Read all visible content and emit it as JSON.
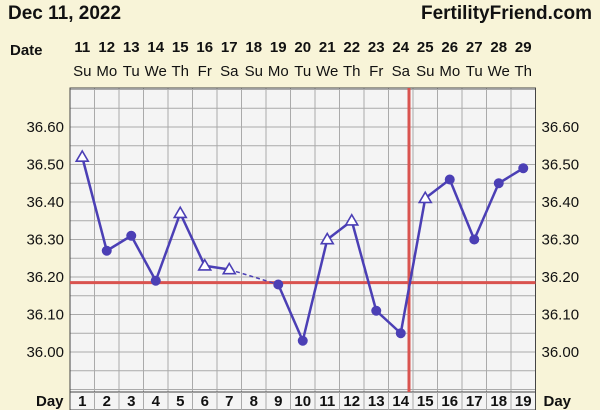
{
  "header": {
    "date": "Dec 11, 2022",
    "brand": "FertilityFriend.com"
  },
  "chart_data": {
    "type": "line",
    "title": "",
    "date_label": "Date",
    "day_label": "Day",
    "dates": [
      "11",
      "12",
      "13",
      "14",
      "15",
      "16",
      "17",
      "18",
      "19",
      "20",
      "21",
      "22",
      "23",
      "24",
      "25",
      "26",
      "27",
      "28",
      "29"
    ],
    "weekdays": [
      "Su",
      "Mo",
      "Tu",
      "We",
      "Th",
      "Fr",
      "Sa",
      "Su",
      "Mo",
      "Tu",
      "We",
      "Th",
      "Fr",
      "Sa",
      "Su",
      "Mo",
      "Tu",
      "We",
      "Th"
    ],
    "cycle_days": [
      1,
      2,
      3,
      4,
      5,
      6,
      7,
      8,
      9,
      10,
      11,
      12,
      13,
      14,
      15,
      16,
      17,
      18,
      19
    ],
    "y_ticks": [
      "36.00",
      "36.10",
      "36.20",
      "36.30",
      "36.40",
      "36.50",
      "36.60"
    ],
    "ylim": [
      35.95,
      36.71
    ],
    "temperatures": [
      {
        "day": 1,
        "temp": 36.52,
        "marker": "triangle"
      },
      {
        "day": 2,
        "temp": 36.27,
        "marker": "circle"
      },
      {
        "day": 3,
        "temp": 36.31,
        "marker": "circle"
      },
      {
        "day": 4,
        "temp": 36.19,
        "marker": "circle"
      },
      {
        "day": 5,
        "temp": 36.37,
        "marker": "triangle"
      },
      {
        "day": 6,
        "temp": 36.23,
        "marker": "triangle"
      },
      {
        "day": 7,
        "temp": 36.22,
        "marker": "triangle"
      },
      {
        "day": 9,
        "temp": 36.18,
        "marker": "circle"
      },
      {
        "day": 10,
        "temp": 36.03,
        "marker": "circle"
      },
      {
        "day": 11,
        "temp": 36.3,
        "marker": "triangle"
      },
      {
        "day": 12,
        "temp": 36.35,
        "marker": "triangle"
      },
      {
        "day": 13,
        "temp": 36.11,
        "marker": "circle"
      },
      {
        "day": 14,
        "temp": 36.05,
        "marker": "circle"
      },
      {
        "day": 15,
        "temp": 36.41,
        "marker": "triangle"
      },
      {
        "day": 16,
        "temp": 36.46,
        "marker": "circle"
      },
      {
        "day": 17,
        "temp": 36.3,
        "marker": "circle"
      },
      {
        "day": 18,
        "temp": 36.45,
        "marker": "circle"
      },
      {
        "day": 19,
        "temp": 36.49,
        "marker": "circle"
      }
    ],
    "gap_between_days": [
      7,
      9
    ],
    "coverline_temp": 36.185,
    "ovulation_day": 14,
    "grid": true,
    "colors": {
      "line": "#4b3fb5",
      "coverline": "#d9534f",
      "grid": "#aaaaaa",
      "background": "#f8f4d8",
      "plot_background": "#f4f4f4",
      "frame": "#444444"
    }
  }
}
